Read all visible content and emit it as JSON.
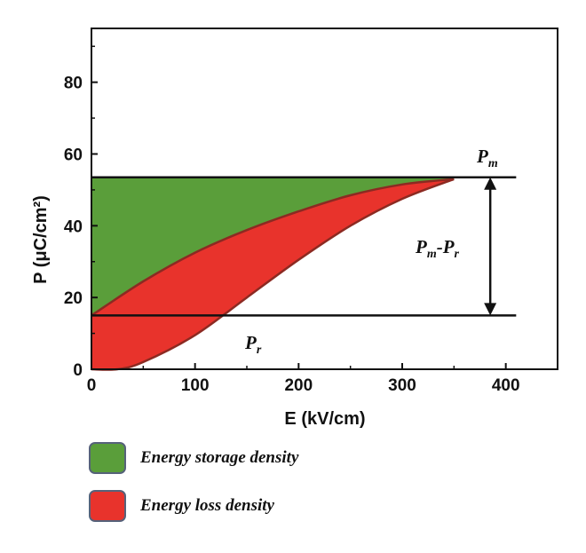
{
  "chart_data": {
    "type": "area",
    "xlabel": "E (kV/cm)",
    "ylabel": "P (μC/cm²)",
    "xlim": [
      0,
      450
    ],
    "ylim": [
      0,
      95
    ],
    "x_ticks": [
      0,
      100,
      200,
      300,
      400
    ],
    "y_ticks": [
      0,
      20,
      40,
      60,
      80
    ],
    "series": [
      {
        "name": "Energy storage density",
        "color": "#5a9e3a",
        "x": [
          0,
          50,
          100,
          150,
          200,
          250,
          300,
          350
        ],
        "y": [
          53.5,
          53.5,
          53.5,
          53.5,
          53.5,
          53.5,
          53.5,
          53.5
        ]
      },
      {
        "name": "Energy loss density",
        "color": "#e8332c",
        "x": [
          0,
          50,
          100,
          150,
          200,
          250,
          300,
          350
        ],
        "y": [
          15,
          24.5,
          32.5,
          38.8,
          44,
          48.5,
          51.5,
          53
        ]
      }
    ],
    "upper_branch": {
      "x": [
        0,
        50,
        100,
        150,
        200,
        250,
        300,
        350
      ],
      "y": [
        15,
        24.5,
        32.5,
        38.8,
        44,
        48.5,
        51.5,
        53
      ]
    },
    "lower_branch": {
      "x": [
        0,
        25,
        50,
        100,
        150,
        200,
        250,
        300,
        350
      ],
      "y": [
        0,
        0,
        2,
        9.5,
        20,
        30.5,
        40,
        47.5,
        53
      ]
    },
    "hlines": [
      {
        "y": 53.5,
        "x_range": [
          0,
          410
        ]
      },
      {
        "y": 15,
        "x_range": [
          0,
          410
        ]
      }
    ],
    "arrow": {
      "x": 385,
      "y_from": 15,
      "y_to": 53.5
    },
    "annotations": {
      "pm": {
        "main": "P",
        "sub": "m"
      },
      "pmpr": {
        "main1": "P",
        "sub1": "m",
        "dash": "-",
        "main2": "P",
        "sub2": "r"
      },
      "pr": {
        "main": "P",
        "sub": "r"
      }
    }
  },
  "legend": [
    {
      "label": "Energy storage density",
      "color": "#5a9e3a"
    },
    {
      "label": "Energy loss density",
      "color": "#e8332c"
    }
  ]
}
